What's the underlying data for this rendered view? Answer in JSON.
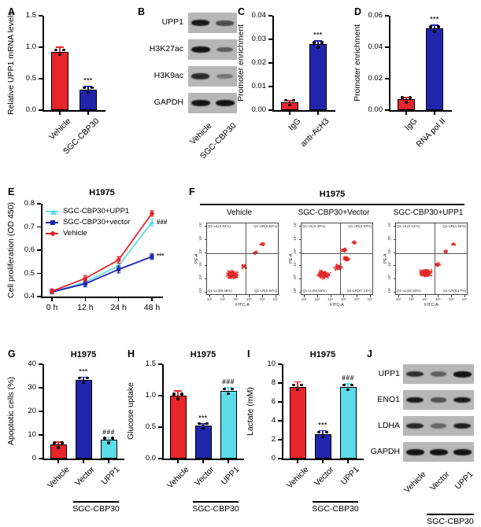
{
  "panels": [
    "A",
    "B",
    "C",
    "D",
    "E",
    "F",
    "G",
    "H",
    "I",
    "J"
  ],
  "colors": {
    "red": "#e8242c",
    "blue": "#2125ac",
    "cyan": "#5cdbe8",
    "dot": "#e02a28",
    "band": "#141414",
    "blot_bg": "#b7b7b7"
  },
  "chart_data": [
    {
      "type": "bar",
      "title": "",
      "ylabel": "Relative UPP1 mRNA levels",
      "yticks": [
        "0.0",
        "0.5",
        "1.0",
        "1.5"
      ],
      "ylim": [
        0,
        1.5
      ],
      "categories": [
        "Vehicle",
        "SGC-CBP30"
      ],
      "values": [
        0.93,
        0.33
      ],
      "errors": [
        0.07,
        0.04
      ],
      "colors": [
        "#e8242c",
        "#2125ac"
      ],
      "sig": [
        "",
        "***"
      ]
    },
    {
      "type": "bar",
      "title": "",
      "ylabel": "Promoter enrichment",
      "yticks": [
        "0.00",
        "0.01",
        "0.02",
        "0.03",
        "0.04"
      ],
      "ylim": [
        0,
        0.04
      ],
      "categories": [
        "IgG",
        "anti-AcH3"
      ],
      "values": [
        0.0035,
        0.028
      ],
      "errors": [
        0.0005,
        0.0013
      ],
      "colors": [
        "#e8242c",
        "#2125ac"
      ],
      "sig": [
        "",
        "***"
      ]
    },
    {
      "type": "bar",
      "title": "",
      "ylabel": "Promoter enrichment",
      "yticks": [
        "0.00",
        "0.02",
        "0.04",
        "0.06"
      ],
      "ylim": [
        0,
        0.06
      ],
      "categories": [
        "IgG",
        "RNA pol II"
      ],
      "values": [
        0.007,
        0.052
      ],
      "errors": [
        0.001,
        0.002
      ],
      "colors": [
        "#e8242c",
        "#2125ac"
      ],
      "sig": [
        "",
        "***"
      ]
    },
    {
      "type": "line",
      "title": "H1975",
      "ylabel": "Cell proliferation (OD 450)",
      "yticks": [
        "0.4",
        "0.5",
        "0.6",
        "0.7",
        "0.8"
      ],
      "ylim": [
        0.4,
        0.8
      ],
      "x": [
        "0 h",
        "12 h",
        "24 h",
        "48 h"
      ],
      "series": [
        {
          "name": "SGC-CBP30+UPP1",
          "color": "#5cdbe8",
          "marker": "triangle",
          "values": [
            0.42,
            0.462,
            0.533,
            0.72
          ],
          "err": [
            0.008,
            0.01,
            0.012,
            0.015
          ],
          "annotation": "###"
        },
        {
          "name": "SGC-CBP30+vector",
          "color": "#2125ac",
          "marker": "square",
          "values": [
            0.42,
            0.455,
            0.517,
            0.572
          ],
          "err": [
            0.008,
            0.013,
            0.015,
            0.012
          ],
          "annotation": "***"
        },
        {
          "name": "Vehicle",
          "color": "#e8242c",
          "marker": "circle",
          "values": [
            0.423,
            0.478,
            0.558,
            0.758
          ],
          "err": [
            0.01,
            0.013,
            0.014,
            0.012
          ],
          "annotation": ""
        }
      ],
      "legend_position": "upper-left"
    },
    {
      "type": "flow",
      "title": "H1975",
      "xlabel": "FITC-A",
      "ylabel": "PE-A",
      "xticks": [
        "10²",
        "10³",
        "10⁴",
        "10⁵",
        "10⁶",
        "10⁷"
      ],
      "yticks": [
        "10²",
        "10³",
        "10⁴",
        "10⁵",
        "10⁶",
        "10⁷"
      ],
      "plots": [
        {
          "name": "Vehicle",
          "quadrants": {
            "UL": "Q1-UL(0.94%)",
            "UR": "Q1-UR(1.54%)",
            "LL": "Q1-LL(95.48%)",
            "LR": "Q1-LR(2.64%)"
          },
          "clusters": [
            [
              0.36,
              0.72,
              0.1,
              0.065,
              320
            ],
            [
              0.52,
              0.6,
              0.05,
              0.04,
              40
            ],
            [
              0.68,
              0.42,
              0.04,
              0.03,
              30
            ],
            [
              0.78,
              0.3,
              0.045,
              0.03,
              40
            ]
          ]
        },
        {
          "name": "SGC-CBP30+Vector",
          "quadrants": {
            "UL": "Q1-UL(0.32%)",
            "UR": "Q1-UR(5.93%)",
            "LL": "Q1-LL(66.55%)",
            "LR": "Q1-LR(27.21%)"
          },
          "clusters": [
            [
              0.32,
              0.72,
              0.1,
              0.065,
              280
            ],
            [
              0.52,
              0.62,
              0.07,
              0.05,
              90
            ],
            [
              0.63,
              0.5,
              0.05,
              0.04,
              85
            ],
            [
              0.6,
              0.38,
              0.04,
              0.035,
              60
            ],
            [
              0.74,
              0.28,
              0.04,
              0.03,
              25
            ]
          ]
        },
        {
          "name": "SGC-CBP30+UPP1",
          "quadrants": {
            "UL": "Q1-UL(0.31%)",
            "UR": "Q1-UR(1.92%)",
            "LL": "Q1-LL(92.93%)",
            "LR": "Q1-LR(5.17%)"
          },
          "clusters": [
            [
              0.42,
              0.7,
              0.1,
              0.06,
              300
            ],
            [
              0.58,
              0.58,
              0.05,
              0.04,
              40
            ],
            [
              0.7,
              0.4,
              0.04,
              0.03,
              25
            ],
            [
              0.8,
              0.3,
              0.035,
              0.025,
              25
            ]
          ]
        }
      ]
    },
    {
      "type": "bar",
      "title": "H1975",
      "ylabel": "Apoptotic cells (%)",
      "yticks": [
        "0",
        "10",
        "20",
        "30",
        "40"
      ],
      "ylim": [
        0,
        40
      ],
      "categories": [
        "Vehicle",
        "Vector",
        "UPP1"
      ],
      "values": [
        6,
        33.5,
        8
      ],
      "errors": [
        1,
        1,
        0.8
      ],
      "colors": [
        "#e8242c",
        "#2125ac",
        "#5cdbe8"
      ],
      "sig": [
        "",
        "***",
        "###"
      ],
      "group": {
        "label": "SGC-CBP30",
        "from": 1,
        "to": 2
      }
    },
    {
      "type": "bar",
      "title": "H1975",
      "ylabel": "Glucose uptake",
      "yticks": [
        "0.0",
        "0.5",
        "1.0",
        "1.5"
      ],
      "ylim": [
        0,
        1.5
      ],
      "categories": [
        "Vehicle",
        "Vector",
        "UPP1"
      ],
      "values": [
        1.0,
        0.53,
        1.08
      ],
      "errors": [
        0.07,
        0.02,
        0.05
      ],
      "colors": [
        "#e8242c",
        "#2125ac",
        "#5cdbe8"
      ],
      "sig": [
        "",
        "***",
        "###"
      ],
      "group": {
        "label": "SGC-CBP30",
        "from": 1,
        "to": 2
      }
    },
    {
      "type": "bar",
      "title": "H1975",
      "ylabel": "Lactate (mM)",
      "yticks": [
        "0",
        "2",
        "4",
        "6",
        "8",
        "10"
      ],
      "ylim": [
        0,
        10
      ],
      "categories": [
        "Vehicle",
        "Vector",
        "UPP1"
      ],
      "values": [
        7.6,
        2.6,
        7.6
      ],
      "errors": [
        0.5,
        0.35,
        0.3
      ],
      "colors": [
        "#e8242c",
        "#2125ac",
        "#5cdbe8"
      ],
      "sig": [
        "",
        "***",
        "###"
      ],
      "group": {
        "label": "SGC-CBP30",
        "from": 1,
        "to": 2
      }
    }
  ],
  "blots": {
    "B": {
      "lanes": [
        "Vehicle",
        "SGC-CBP30"
      ],
      "rows": [
        {
          "label": "UPP1",
          "bands": [
            0.95,
            0.6
          ]
        },
        {
          "label": "H3K27ac",
          "bands": [
            1.0,
            0.5
          ]
        },
        {
          "label": "H3K9ac",
          "bands": [
            0.85,
            0.3
          ]
        },
        {
          "label": "GAPDH",
          "bands": [
            1.0,
            1.0
          ]
        }
      ]
    },
    "J": {
      "lanes": [
        "Vehicle",
        "Vector",
        "UPP1"
      ],
      "group": {
        "label": "SGC-CBP30",
        "from": 1,
        "to": 2
      },
      "rows": [
        {
          "label": "UPP1",
          "bands": [
            0.8,
            0.45,
            1.0
          ]
        },
        {
          "label": "ENO1",
          "bands": [
            0.95,
            0.55,
            0.95
          ]
        },
        {
          "label": "LDHA",
          "bands": [
            0.85,
            0.4,
            0.9
          ]
        },
        {
          "label": "GAPDH",
          "bands": [
            1.0,
            1.0,
            1.0
          ]
        }
      ]
    }
  }
}
